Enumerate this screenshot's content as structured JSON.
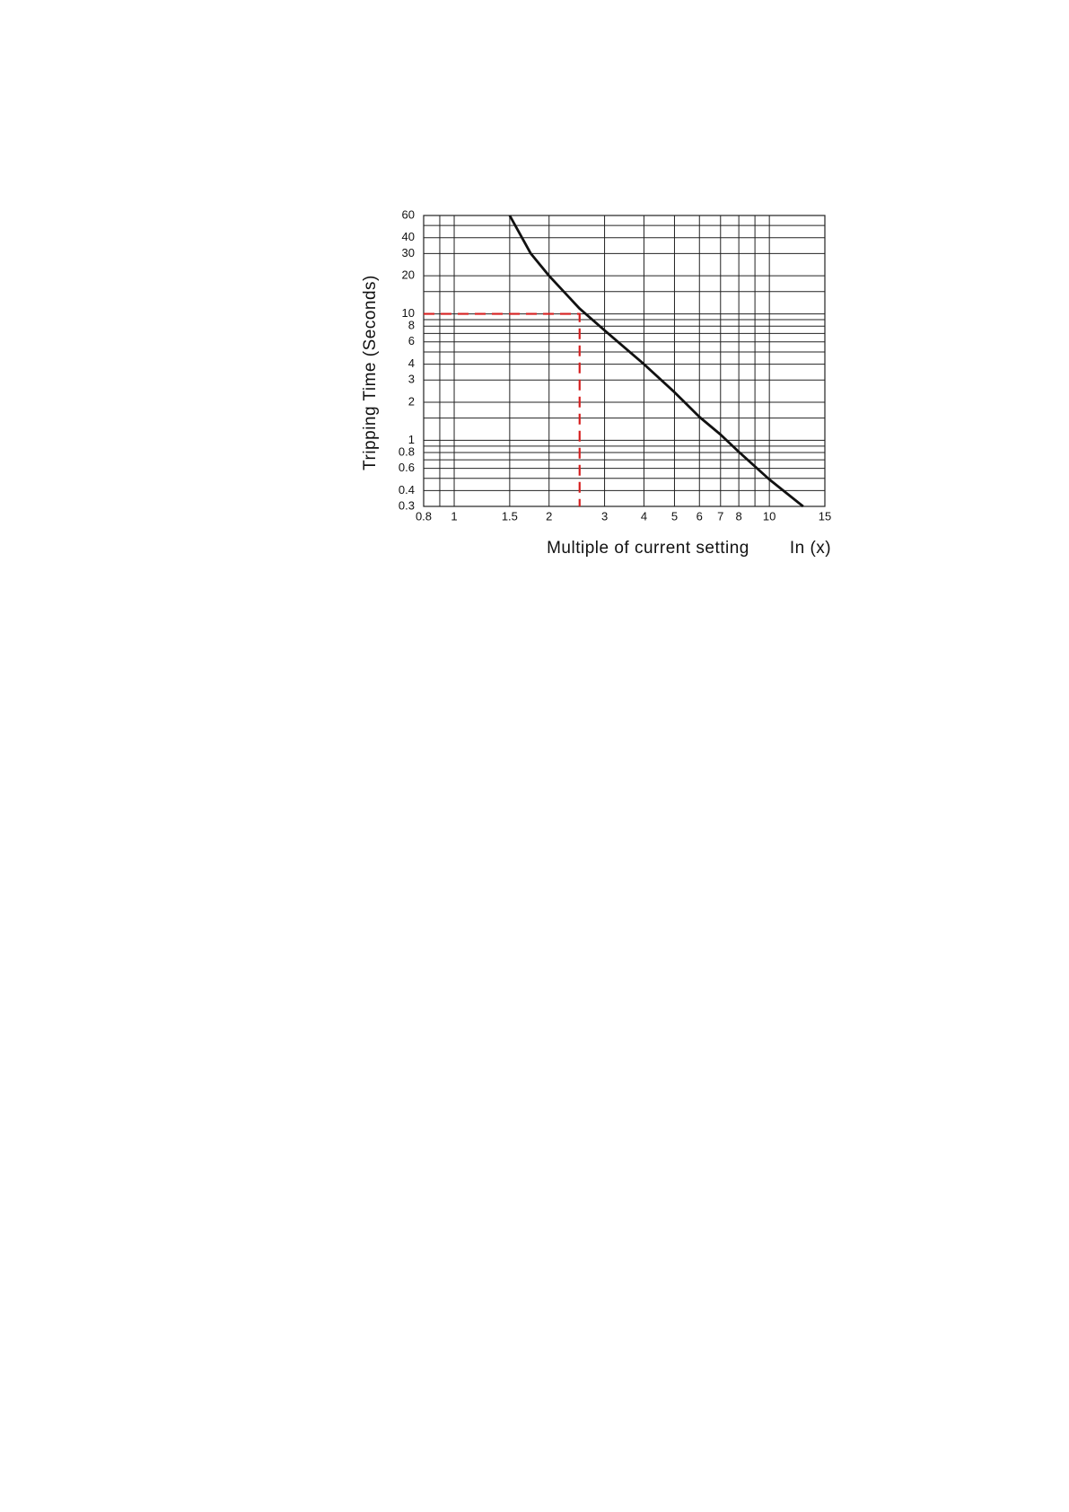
{
  "chart_data": {
    "type": "line",
    "x_label": "Multiple of current setting",
    "x_unit_label": "In (x)",
    "y_label": "Tripping Time (Seconds)",
    "xlog": true,
    "ylog": true,
    "xlim": [
      0.8,
      15
    ],
    "ylim": [
      0.3,
      60
    ],
    "xticks": [
      0.8,
      1,
      1.5,
      2,
      3,
      4,
      5,
      6,
      7,
      8,
      10,
      15
    ],
    "yticks": [
      0.3,
      0.4,
      0.6,
      0.8,
      1,
      2,
      3,
      4,
      6,
      8,
      10,
      20,
      30,
      40,
      60
    ],
    "x_minor_grid": [
      0.9,
      9
    ],
    "y_minor_grid": [
      0.5,
      0.7,
      0.9,
      1.5,
      5,
      7,
      9,
      15,
      50
    ],
    "grid": true,
    "series": [
      {
        "color": "#111111",
        "x": [
          1.5,
          1.75,
          2,
          2.5,
          3,
          4,
          5,
          6,
          7,
          8,
          10,
          12.8
        ],
        "values": [
          60,
          30,
          20,
          11,
          7.4,
          4.0,
          2.4,
          1.53,
          1.11,
          0.81,
          0.49,
          0.3
        ]
      }
    ],
    "reference": {
      "x": 2.5,
      "y": 10,
      "color": "#d62020"
    }
  }
}
